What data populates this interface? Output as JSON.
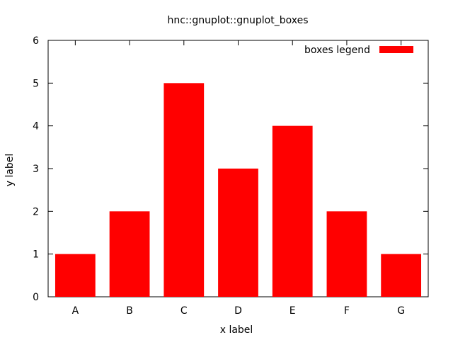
{
  "chart_data": {
    "type": "bar",
    "title": "hnc::gnuplot::gnuplot_boxes",
    "xlabel": "x label",
    "ylabel": "y label",
    "categories": [
      "A",
      "B",
      "C",
      "D",
      "E",
      "F",
      "G"
    ],
    "series": [
      {
        "name": "boxes legend",
        "values": [
          1,
          2,
          5,
          3,
          4,
          2,
          1
        ],
        "color": "#ff0000"
      }
    ],
    "ylim": [
      0,
      6
    ],
    "yticks": [
      0,
      1,
      2,
      3,
      4,
      5,
      6
    ],
    "grid": false,
    "legend_position": "top-right"
  }
}
